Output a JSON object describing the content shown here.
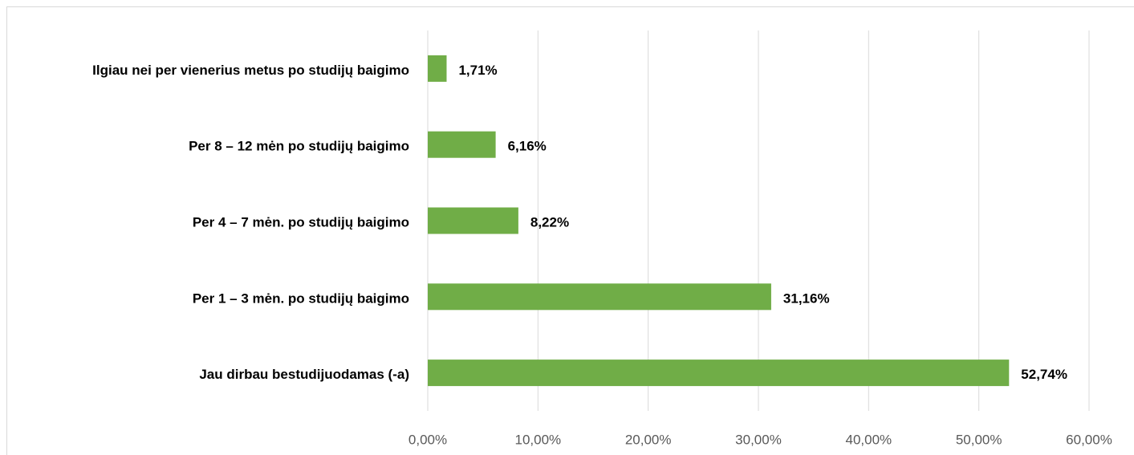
{
  "chart_data": {
    "type": "hbar",
    "categories": [
      "Ilgiau nei per vienerius metus po studijų baigimo",
      "Per 8 – 12 mėn po studijų baigimo",
      "Per 4 – 7 mėn. po studijų baigimo",
      "Per 1 – 3 mėn. po studijų baigimo",
      "Jau dirbau bestudijuodamas (-a)"
    ],
    "values": [
      1.71,
      6.16,
      8.22,
      31.16,
      52.74
    ],
    "value_labels": [
      "1,71%",
      "6,16%",
      "8,22%",
      "31,16%",
      "52,74%"
    ],
    "color": "#70ad47",
    "xlim": [
      0,
      60
    ],
    "xticks": [
      {
        "value": 0,
        "label": "0,00%"
      },
      {
        "value": 10,
        "label": "10,00%"
      },
      {
        "value": 20,
        "label": "20,00%"
      },
      {
        "value": 30,
        "label": "30,00%"
      },
      {
        "value": 40,
        "label": "40,00%"
      },
      {
        "value": 50,
        "label": "50,00%"
      },
      {
        "value": 60,
        "label": "60,00%"
      }
    ],
    "grid": true
  }
}
